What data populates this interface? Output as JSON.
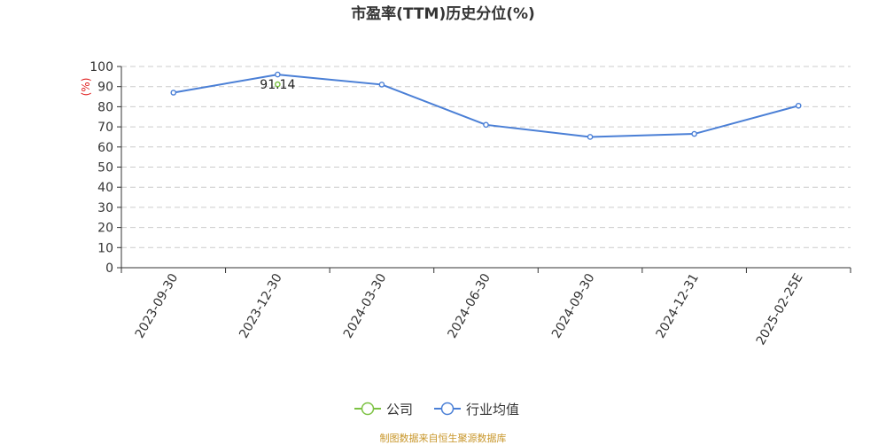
{
  "chart_data": {
    "type": "line",
    "title": "市盈率(TTM)历史分位(%)",
    "ylabel": "(%)",
    "xlabel": "",
    "categories": [
      "2023-09-30",
      "2023-12-30",
      "2024-03-30",
      "2024-06-30",
      "2024-09-30",
      "2024-12-31",
      "2025-02-25E"
    ],
    "ylim": [
      0,
      100
    ],
    "yticks": [
      0,
      10,
      20,
      30,
      40,
      50,
      60,
      70,
      80,
      90,
      100
    ],
    "grid": true,
    "legend_position": "bottom",
    "series": [
      {
        "name": "公司",
        "color": "#7cc242",
        "values": [
          null,
          91.14,
          null,
          null,
          null,
          null,
          null
        ],
        "data_labels": [
          "",
          "91.14",
          "",
          "",
          "",
          "",
          ""
        ]
      },
      {
        "name": "行业均值",
        "color": "#4a7fd6",
        "values": [
          87,
          96,
          91,
          71,
          65,
          66.5,
          80.5
        ]
      }
    ],
    "source": "制图数据来自恒生聚源数据库"
  }
}
